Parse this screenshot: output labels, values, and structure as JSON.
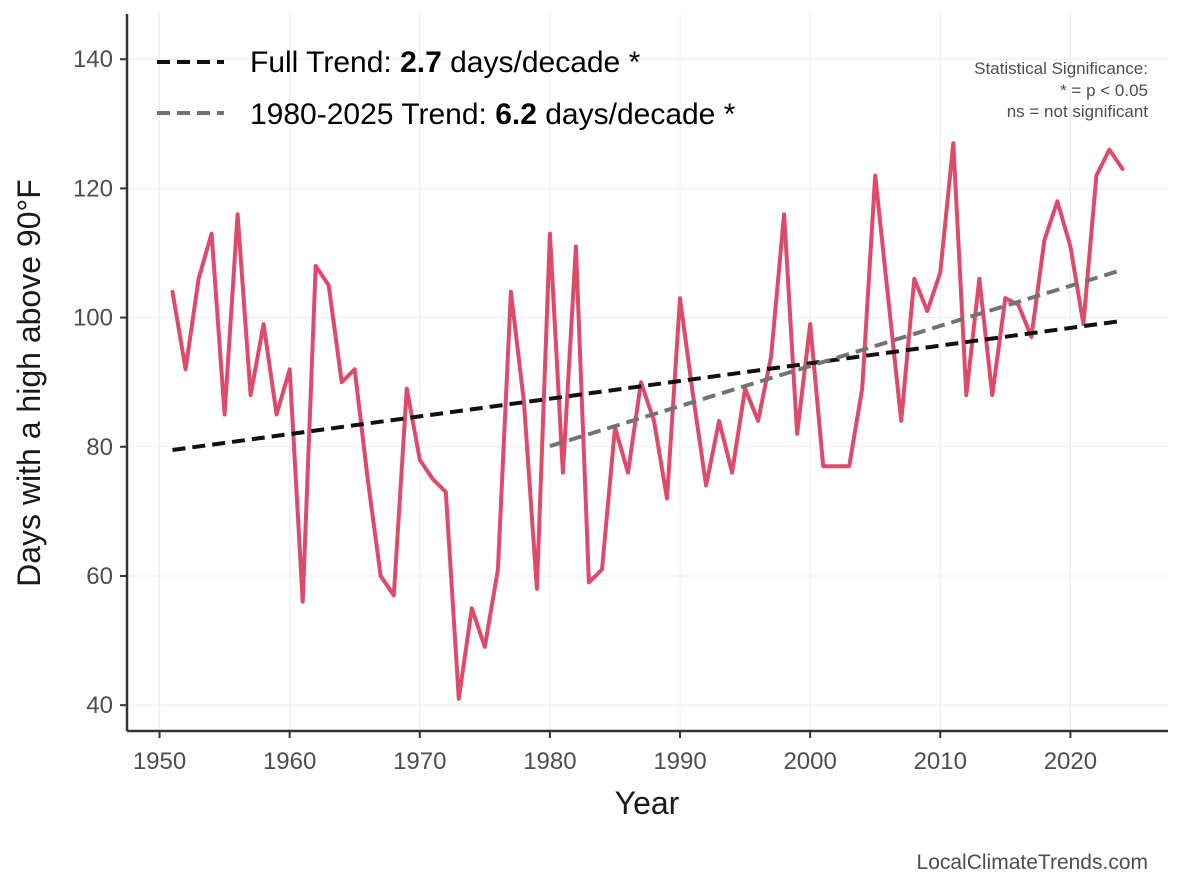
{
  "chart_data": {
    "type": "line",
    "xlabel": "Year",
    "ylabel": "Days with a high above 90°F",
    "xlim": [
      1947.5,
      2027.5
    ],
    "ylim": [
      36,
      147
    ],
    "x_ticks": [
      1950,
      1960,
      1970,
      1980,
      1990,
      2000,
      2010,
      2020
    ],
    "y_ticks": [
      40,
      60,
      80,
      100,
      120,
      140
    ],
    "grid": true,
    "legend_position": "top-left",
    "series": [
      {
        "color": "#dd4a6a",
        "x": [
          1951,
          1952,
          1953,
          1954,
          1955,
          1956,
          1957,
          1958,
          1959,
          1960,
          1961,
          1962,
          1963,
          1964,
          1965,
          1966,
          1967,
          1968,
          1969,
          1970,
          1971,
          1972,
          1973,
          1974,
          1975,
          1976,
          1977,
          1978,
          1979,
          1980,
          1981,
          1982,
          1983,
          1984,
          1985,
          1986,
          1987,
          1988,
          1989,
          1990,
          1991,
          1992,
          1993,
          1994,
          1995,
          1996,
          1997,
          1998,
          1999,
          2000,
          2001,
          2002,
          2003,
          2004,
          2005,
          2006,
          2007,
          2008,
          2009,
          2010,
          2011,
          2012,
          2013,
          2014,
          2015,
          2016,
          2017,
          2018,
          2019,
          2020,
          2021,
          2022,
          2023,
          2024
        ],
        "values": [
          104,
          92,
          106,
          113,
          85,
          116,
          88,
          99,
          85,
          92,
          56,
          108,
          105,
          90,
          92,
          75,
          60,
          57,
          89,
          78,
          75,
          73,
          41,
          55,
          49,
          61,
          104,
          87,
          58,
          113,
          76,
          111,
          59,
          61,
          83,
          76,
          90,
          84,
          72,
          103,
          88,
          74,
          84,
          76,
          89,
          84,
          94,
          116,
          82,
          99,
          77,
          77,
          77,
          89,
          122,
          103,
          84,
          106,
          101,
          107,
          127,
          88,
          106,
          88,
          103,
          102,
          97,
          112,
          118,
          111,
          99,
          122,
          126,
          123
        ]
      }
    ],
    "trend_lines": [
      {
        "label_prefix": "Full Trend: ",
        "slope": "2.7",
        "label_suffix": " days/decade *",
        "color": "#111111",
        "x": [
          1951,
          2024
        ],
        "y": [
          79.5,
          99.5
        ]
      },
      {
        "label_prefix": "1980-2025 Trend: ",
        "slope": "6.2",
        "label_suffix": " days/decade *",
        "color": "#737373",
        "x": [
          1980,
          2024
        ],
        "y": [
          80.1,
          107.4
        ]
      }
    ],
    "significance_note": [
      "Statistical Significance:",
      "* = p < 0.05",
      "ns = not significant"
    ],
    "source_credit": "LocalClimateTrends.com"
  }
}
